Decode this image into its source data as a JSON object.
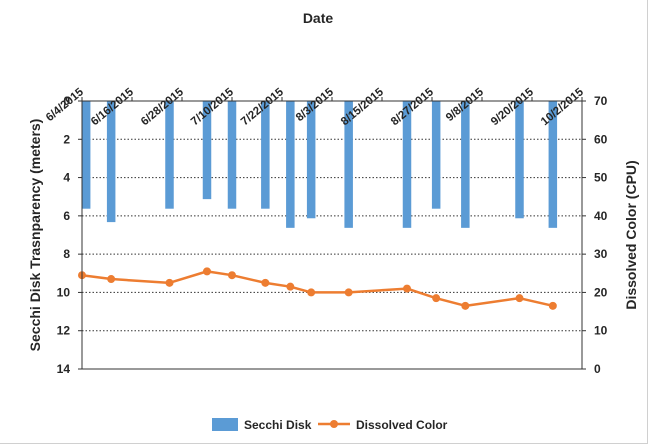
{
  "chart_data": {
    "type": "bar+line",
    "title": "",
    "xlabel": "Date",
    "ylabel_left": "Secchi Disk Trasnparency (meters)",
    "ylabel_right": "Dissolved Color (CPU)",
    "x_axis_position": "top",
    "ylim_left": [
      0,
      14
    ],
    "ylim_left_inverted": true,
    "ylim_right": [
      0,
      70
    ],
    "yticks_left": [
      "0",
      "2",
      "4",
      "6",
      "8",
      "10",
      "12",
      "14"
    ],
    "yticks_right": [
      "0",
      "10",
      "20",
      "30",
      "40",
      "50",
      "60",
      "70"
    ],
    "xticks": [
      "6/4/2015",
      "6/16/2015",
      "6/28/2015",
      "7/10/2015",
      "7/22/2015",
      "8/3/2015",
      "8/15/2015",
      "8/27/2015",
      "9/8/2015",
      "9/20/2015",
      "10/2/2015"
    ],
    "grid": "horizontal dotted",
    "legend_position": "bottom",
    "series": [
      {
        "name": "Secchi Disk",
        "type": "bar",
        "axis": "left",
        "color": "#5B9BD5",
        "x": [
          "6/5/2015",
          "6/11/2015",
          "6/25/2015",
          "7/4/2015",
          "7/10/2015",
          "7/18/2015",
          "7/24/2015",
          "7/29/2015",
          "8/7/2015",
          "8/21/2015",
          "8/28/2015",
          "9/4/2015",
          "9/17/2015",
          "9/25/2015"
        ],
        "values": [
          5.6,
          6.3,
          5.6,
          5.1,
          5.6,
          5.6,
          6.6,
          6.1,
          6.6,
          6.6,
          5.6,
          6.6,
          6.1,
          6.6
        ]
      },
      {
        "name": "Dissolved Color",
        "type": "line",
        "axis": "right",
        "color": "#ED7D31",
        "x": [
          "6/4/2015",
          "6/11/2015",
          "6/25/2015",
          "7/4/2015",
          "7/10/2015",
          "7/18/2015",
          "7/24/2015",
          "7/29/2015",
          "8/7/2015",
          "8/21/2015",
          "8/28/2015",
          "9/4/2015",
          "9/17/2015",
          "9/25/2015"
        ],
        "values": [
          24.5,
          23.5,
          22.5,
          25.5,
          24.5,
          22.5,
          21.5,
          20.0,
          20.0,
          21.0,
          18.5,
          16.5,
          18.5,
          16.5
        ]
      }
    ]
  }
}
